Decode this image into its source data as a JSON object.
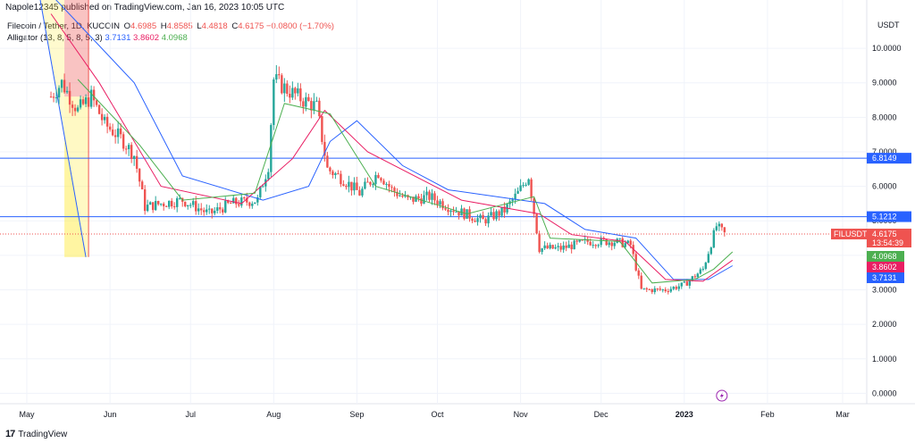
{
  "header": {
    "publisher_line": "Napole12345 published on TradingView.com, Jan 16, 2023 10:05 UTC"
  },
  "legend": {
    "symbol": "Filecoin / Tether, 1D, KUCOIN",
    "o_label": "O",
    "o": "4.6985",
    "h_label": "H",
    "h": "4.8585",
    "l_label": "L",
    "l": "4.4818",
    "c_label": "C",
    "c": "4.6175",
    "change": "−0.0800 (−1.70%)",
    "indicator": "Alligator (13, 8, 5, 8, 5, 3)",
    "jaw": "3.7131",
    "teeth": "3.8602",
    "lips": "4.0968"
  },
  "footer": {
    "brand": "TradingView"
  },
  "colors": {
    "up": "#26a69a",
    "down": "#ef5350",
    "jaw": "#2962ff",
    "teeth": "#e91e63",
    "lips": "#4caf50",
    "hline": "#2962ff",
    "grid": "#f0f3fa"
  },
  "chart_data": {
    "type": "candlestick",
    "currency": "USDT",
    "y_ticks": [
      "10.0000",
      "9.0000",
      "8.0000",
      "7.0000",
      "6.0000",
      "5.0000",
      "4.0000",
      "3.0000",
      "2.0000",
      "1.0000",
      "0.0000"
    ],
    "ylim": [
      -0.3,
      11.4
    ],
    "x_labels": [
      {
        "label": "May",
        "x": "2022-05-01"
      },
      {
        "label": "Jun",
        "x": "2022-06-01"
      },
      {
        "label": "Jul",
        "x": "2022-07-01"
      },
      {
        "label": "Aug",
        "x": "2022-08-01"
      },
      {
        "label": "Sep",
        "x": "2022-09-01"
      },
      {
        "label": "Oct",
        "x": "2022-10-01"
      },
      {
        "label": "Nov",
        "x": "2022-11-01"
      },
      {
        "label": "Dec",
        "x": "2022-12-01"
      },
      {
        "label": "2023",
        "x": "2023-01-01"
      },
      {
        "label": "Feb",
        "x": "2023-02-01"
      },
      {
        "label": "Mar",
        "x": "2023-03-01"
      }
    ],
    "xlim": [
      "2022-04-21",
      "2023-03-10"
    ],
    "price_keypoints": [
      [
        "2022-05-10",
        8.6
      ],
      [
        "2022-05-14",
        9.0
      ],
      [
        "2022-05-20",
        8.2
      ],
      [
        "2022-05-25",
        8.6
      ],
      [
        "2022-05-30",
        7.8
      ],
      [
        "2022-06-05",
        7.4
      ],
      [
        "2022-06-10",
        6.9
      ],
      [
        "2022-06-14",
        5.4
      ],
      [
        "2022-06-20",
        5.5
      ],
      [
        "2022-06-28",
        5.6
      ],
      [
        "2022-07-08",
        5.2
      ],
      [
        "2022-07-16",
        5.5
      ],
      [
        "2022-07-26",
        5.6
      ],
      [
        "2022-07-30",
        6.6
      ],
      [
        "2022-08-01",
        9.1
      ],
      [
        "2022-08-06",
        8.8
      ],
      [
        "2022-08-12",
        8.5
      ],
      [
        "2022-08-17",
        8.3
      ],
      [
        "2022-08-21",
        6.5
      ],
      [
        "2022-08-27",
        6.2
      ],
      [
        "2022-09-02",
        5.8
      ],
      [
        "2022-09-09",
        6.4
      ],
      [
        "2022-09-14",
        5.9
      ],
      [
        "2022-09-20",
        5.6
      ],
      [
        "2022-09-28",
        5.7
      ],
      [
        "2022-10-08",
        5.3
      ],
      [
        "2022-10-18",
        5.0
      ],
      [
        "2022-10-26",
        5.3
      ],
      [
        "2022-10-31",
        5.8
      ],
      [
        "2022-11-04",
        6.3
      ],
      [
        "2022-11-08",
        4.2
      ],
      [
        "2022-11-16",
        4.2
      ],
      [
        "2022-11-26",
        4.4
      ],
      [
        "2022-12-06",
        4.4
      ],
      [
        "2022-12-12",
        4.3
      ],
      [
        "2022-12-16",
        3.0
      ],
      [
        "2022-12-25",
        3.0
      ],
      [
        "2023-01-01",
        3.15
      ],
      [
        "2023-01-08",
        3.6
      ],
      [
        "2023-01-13",
        4.85
      ],
      [
        "2023-01-16",
        4.62
      ]
    ],
    "alligator": {
      "jaw": {
        "name": "jaw",
        "points": [
          [
            "2022-05-01",
            12.3
          ],
          [
            "2022-06-10",
            9.0
          ],
          [
            "2022-06-28",
            6.3
          ],
          [
            "2022-07-28",
            5.6
          ],
          [
            "2022-08-14",
            6.0
          ],
          [
            "2022-08-22",
            7.3
          ],
          [
            "2022-09-01",
            7.9
          ],
          [
            "2022-09-18",
            6.6
          ],
          [
            "2022-10-05",
            5.9
          ],
          [
            "2022-11-10",
            5.5
          ],
          [
            "2022-11-25",
            4.75
          ],
          [
            "2022-12-14",
            4.5
          ],
          [
            "2022-12-28",
            3.3
          ],
          [
            "2023-01-10",
            3.3
          ],
          [
            "2023-01-19",
            3.7
          ]
        ]
      },
      "teeth": {
        "name": "teeth",
        "points": [
          [
            "2022-05-10",
            11.0
          ],
          [
            "2022-05-28",
            9.0
          ],
          [
            "2022-06-20",
            6.0
          ],
          [
            "2022-07-20",
            5.5
          ],
          [
            "2022-08-08",
            6.8
          ],
          [
            "2022-08-20",
            8.2
          ],
          [
            "2022-09-05",
            7.0
          ],
          [
            "2022-10-10",
            5.6
          ],
          [
            "2022-11-08",
            5.2
          ],
          [
            "2022-11-20",
            4.6
          ],
          [
            "2022-12-10",
            4.4
          ],
          [
            "2022-12-25",
            3.3
          ],
          [
            "2023-01-08",
            3.25
          ],
          [
            "2023-01-19",
            3.86
          ]
        ]
      },
      "lips": {
        "name": "lips",
        "points": [
          [
            "2022-05-20",
            9.1
          ],
          [
            "2022-06-12",
            7.2
          ],
          [
            "2022-06-28",
            5.6
          ],
          [
            "2022-07-25",
            5.8
          ],
          [
            "2022-08-05",
            8.4
          ],
          [
            "2022-08-22",
            8.1
          ],
          [
            "2022-09-08",
            6.0
          ],
          [
            "2022-10-12",
            5.2
          ],
          [
            "2022-11-06",
            5.7
          ],
          [
            "2022-11-12",
            4.5
          ],
          [
            "2022-12-08",
            4.4
          ],
          [
            "2022-12-20",
            3.2
          ],
          [
            "2023-01-05",
            3.3
          ],
          [
            "2023-01-12",
            3.6
          ],
          [
            "2023-01-19",
            4.1
          ]
        ]
      }
    },
    "horizontal_lines": [
      {
        "value": 6.8149,
        "label": "6.8149"
      },
      {
        "value": 5.1212,
        "label": "5.1212"
      }
    ],
    "price_labels": [
      {
        "id": "last",
        "symbol": "FILUSDT",
        "value": "4.6175",
        "countdown": "13:54:39",
        "y": 4.6175,
        "color": "#ef5350"
      },
      {
        "id": "lips",
        "value": "4.0968",
        "y": 4.0968,
        "color": "#4caf50"
      },
      {
        "id": "teeth",
        "value": "3.8602",
        "y": 3.8602,
        "color": "#e91e63"
      },
      {
        "id": "jaw",
        "value": "3.7131",
        "y": 3.7131,
        "color": "#2962ff"
      }
    ],
    "drawing": {
      "trendline_from": [
        "2022-05-06",
        11.4
      ],
      "trendline_to": [
        "2022-05-23",
        3.95
      ],
      "fib_top": 11.4,
      "fib_bottom": 3.95,
      "fib_mid": 8.6,
      "fib_left": "2022-05-15",
      "fib_right": "2022-05-24"
    }
  }
}
